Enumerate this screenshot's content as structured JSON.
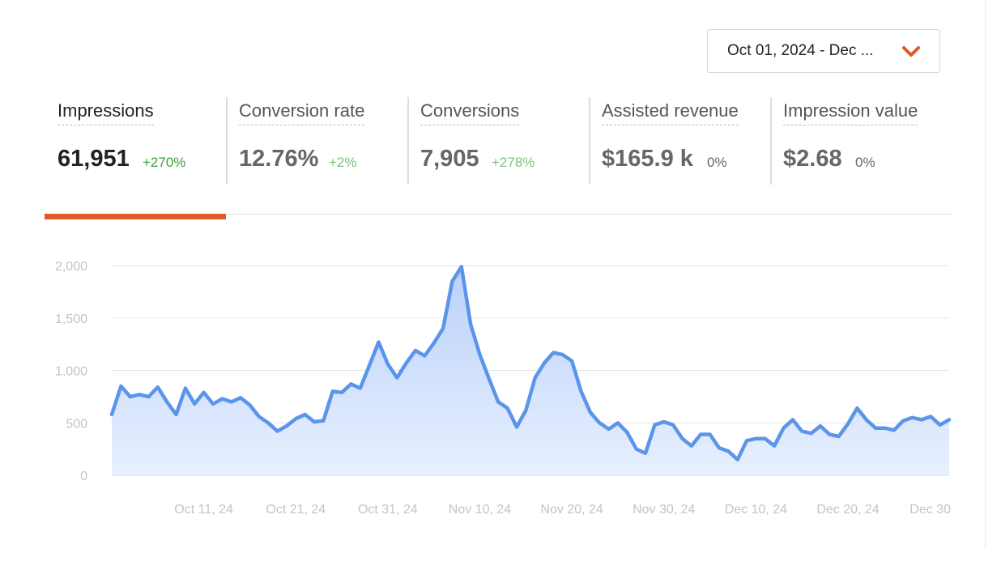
{
  "date_range": {
    "label": "Oct 01, 2024 - Dec ...",
    "icon": "chevron-down-icon",
    "icon_color": "#e05a26"
  },
  "metrics": [
    {
      "label": "Impressions",
      "value": "61,951",
      "change": "+270%",
      "active": true
    },
    {
      "label": "Conversion rate",
      "value": "12.76%",
      "change": "+2%",
      "active": false
    },
    {
      "label": "Conversions",
      "value": "7,905",
      "change": "+278%",
      "active": false
    },
    {
      "label": "Assisted revenue",
      "value": "$165.9 k",
      "change": "0%",
      "active": false
    },
    {
      "label": "Impression value",
      "value": "$2.68",
      "change": "0%",
      "active": false
    }
  ],
  "colors": {
    "accent": "#e05a26",
    "positive": "#3aa13a",
    "line": "#5b95ea",
    "fill": "#c9dcfa"
  },
  "chart_data": {
    "type": "area",
    "title": "",
    "xlabel": "",
    "ylabel": "",
    "ylim": [
      0,
      2000
    ],
    "y_ticks": [
      "2,000",
      "1,500",
      "1,000",
      "500",
      "0"
    ],
    "x_tick_labels": [
      "Oct 11, 24",
      "Oct 21, 24",
      "Oct 31, 24",
      "Nov 10, 24",
      "Nov 20, 24",
      "Nov 30, 24",
      "Dec 10, 24",
      "Dec 20, 24",
      "Dec 30"
    ],
    "grid": true,
    "series": [
      {
        "values": [
          580,
          850,
          750,
          770,
          750,
          840,
          700,
          580,
          830,
          680,
          790,
          680,
          730,
          700,
          740,
          670,
          560,
          500,
          420,
          470,
          540,
          580,
          510,
          520,
          800,
          790,
          870,
          830,
          1050,
          1270,
          1060,
          930,
          1070,
          1190,
          1140,
          1260,
          1400,
          1850,
          1990,
          1440,
          1150,
          920,
          700,
          640,
          460,
          620,
          930,
          1070,
          1170,
          1150,
          1090,
          800,
          600,
          500,
          440,
          500,
          410,
          250,
          210,
          480,
          510,
          480,
          350,
          280,
          390,
          390,
          260,
          230,
          150,
          330,
          350,
          350,
          280,
          450,
          530,
          420,
          400,
          470,
          390,
          370,
          490,
          640,
          530,
          450,
          450,
          430,
          520,
          550,
          530,
          560,
          480,
          530
        ]
      }
    ]
  }
}
